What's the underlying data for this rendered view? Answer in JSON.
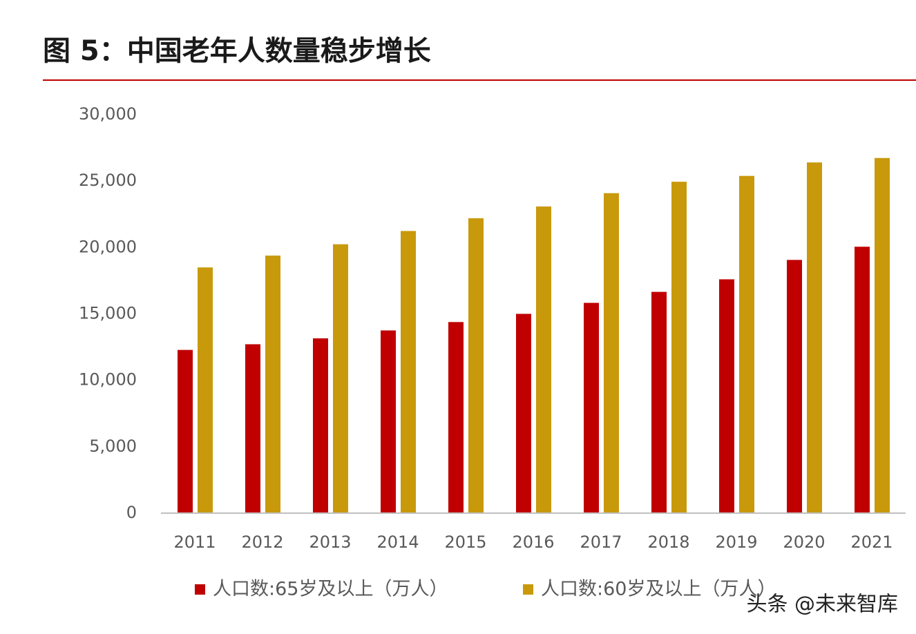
{
  "chart_data": {
    "type": "bar",
    "title": "图 5：中国老年人数量稳步增长",
    "categories": [
      "2011",
      "2012",
      "2013",
      "2014",
      "2015",
      "2016",
      "2017",
      "2018",
      "2019",
      "2020",
      "2021"
    ],
    "series": [
      {
        "name": "人口数:65岁及以上（万人）",
        "color": "#c00000",
        "values": [
          12288,
          12714,
          13161,
          13755,
          14386,
          15003,
          15831,
          16658,
          17603,
          19064,
          20056
        ]
      },
      {
        "name": "人口数:60岁及以上（万人）",
        "color": "#c9990c",
        "values": [
          18499,
          19390,
          20243,
          21242,
          22200,
          23086,
          24090,
          24949,
          25388,
          26402,
          26736
        ]
      }
    ],
    "ylim": [
      0,
      30000
    ],
    "yticks": [
      0,
      {
        "value": 5000,
        "label": "5,000"
      },
      {
        "value": 10000,
        "label": "10,000"
      },
      {
        "value": 15000,
        "label": "15,000"
      },
      {
        "value": 20000,
        "label": "20,000"
      },
      {
        "value": 25000,
        "label": "25,000"
      },
      {
        "value": 30000,
        "label": "30,000"
      }
    ],
    "grid": false,
    "legend": "bottom",
    "watermark": "头条 @未来智库"
  }
}
